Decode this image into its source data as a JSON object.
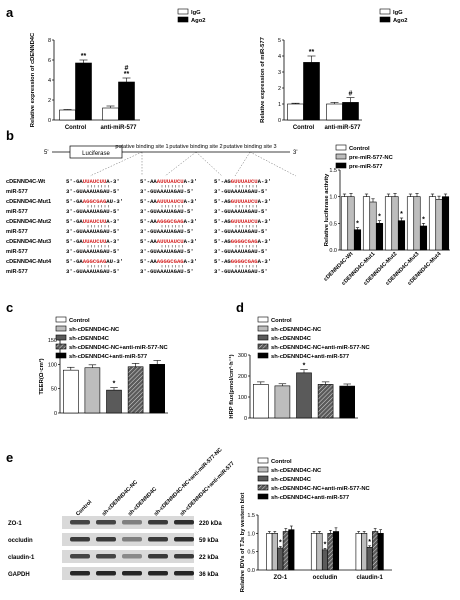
{
  "panels": {
    "a": "a",
    "b": "b",
    "c": "c",
    "d": "d",
    "e": "e"
  },
  "colors": {
    "white": "#ffffff",
    "light_gray": "#bdbdbd",
    "dark_gray": "#5a5a5a",
    "black": "#000000",
    "red": "#d42020"
  },
  "chart_data": [
    {
      "panel": "a-left",
      "type": "bar",
      "ylabel": "Relative expression of cDENND4C",
      "legend": [
        "IgG",
        "Ago2"
      ],
      "legend_position": "top-right",
      "categories": [
        "Control",
        "anti-miR-577"
      ],
      "series": [
        {
          "name": "IgG",
          "values": [
            1.0,
            1.2
          ],
          "errors": [
            0.05,
            0.2
          ]
        },
        {
          "name": "Ago2",
          "values": [
            5.7,
            3.8
          ],
          "errors": [
            0.3,
            0.4
          ]
        }
      ],
      "ylim": [
        0,
        8
      ],
      "yticks": [
        "0",
        "2",
        "4",
        "6",
        "8"
      ],
      "annotations": [
        {
          "category": 1,
          "series": 1,
          "text": "**"
        },
        {
          "category": 0,
          "series": 1,
          "text": "**"
        },
        {
          "category": 1,
          "series": 1,
          "text": "#"
        }
      ]
    },
    {
      "panel": "a-right",
      "type": "bar",
      "ylabel": "Relative expression of miR-577",
      "legend": [
        "IgG",
        "Ago2"
      ],
      "legend_position": "top-right",
      "categories": [
        "Control",
        "anti-miR-577"
      ],
      "series": [
        {
          "name": "IgG",
          "values": [
            1.0,
            1.0
          ],
          "errors": [
            0.05,
            0.1
          ]
        },
        {
          "name": "Ago2",
          "values": [
            3.6,
            1.1
          ],
          "errors": [
            0.4,
            0.3
          ]
        }
      ],
      "ylim": [
        0,
        5
      ],
      "yticks": [
        "0",
        "1",
        "2",
        "3",
        "4",
        "5"
      ],
      "annotations": [
        {
          "category": 0,
          "series": 1,
          "text": "**"
        },
        {
          "category": 1,
          "series": 1,
          "text": "#"
        }
      ]
    },
    {
      "panel": "b",
      "type": "bar",
      "ylabel": "Relative luciferase activity",
      "legend": [
        "Control",
        "pre-miR-577-NC",
        "pre-miR-577"
      ],
      "legend_position": "top",
      "categories": [
        "cDENND4C-Wt",
        "cDENND4C-Mut1",
        "cDENND4C-Mut2",
        "cDENND4C-Mut3",
        "cDENND4C-Mut4"
      ],
      "series": [
        {
          "name": "Control",
          "values": [
            1.0,
            1.0,
            1.0,
            1.0,
            1.0
          ],
          "errors": [
            0.05,
            0.05,
            0.05,
            0.05,
            0.05
          ]
        },
        {
          "name": "pre-miR-577-NC",
          "values": [
            1.0,
            0.9,
            1.0,
            1.0,
            0.95
          ],
          "errors": [
            0.06,
            0.06,
            0.06,
            0.06,
            0.06
          ]
        },
        {
          "name": "pre-miR-577",
          "values": [
            0.38,
            0.5,
            0.55,
            0.45,
            1.0
          ],
          "errors": [
            0.04,
            0.05,
            0.05,
            0.05,
            0.05
          ]
        }
      ],
      "ylim": [
        0,
        1.5
      ],
      "yticks": [
        "0.0",
        "0.5",
        "1.0",
        "1.5"
      ],
      "annotations": [
        {
          "category": 0,
          "series": 2,
          "text": "*"
        },
        {
          "category": 1,
          "series": 2,
          "text": "*"
        },
        {
          "category": 2,
          "series": 2,
          "text": "*"
        },
        {
          "category": 3,
          "series": 2,
          "text": "*"
        }
      ]
    },
    {
      "panel": "c",
      "type": "bar",
      "ylabel": "TEER(Ω·cm²)",
      "legend": [
        "Control",
        "sh-cDENND4C-NC",
        "sh-cDENND4C",
        "sh-cDENND4C-NC+anti-miR-577-NC",
        "sh-cDENND4C+anti-miR-577"
      ],
      "legend_position": "top",
      "categories": [
        "Control",
        "sh-cDENND4C-NC",
        "sh-cDENND4C",
        "sh-cDENND4C-NC+anti-miR-577-NC",
        "sh-cDENND4C+anti-miR-577"
      ],
      "values": [
        88,
        93,
        47,
        95,
        100
      ],
      "errors": [
        6,
        6,
        5,
        7,
        8
      ],
      "ylim": [
        0,
        150
      ],
      "yticks": [
        "0",
        "50",
        "100",
        "150"
      ],
      "annotations": [
        {
          "category": 2,
          "text": "*"
        }
      ]
    },
    {
      "panel": "d",
      "type": "bar",
      "ylabel": "HRP flux(pmol/cm²·h⁻¹)",
      "legend": [
        "Control",
        "sh-cDENND4C-NC",
        "sh-cDENND4C",
        "sh-cDENND4C-NC+anti-miR-577-NC",
        "sh-cDENND4C+anti-miR-577"
      ],
      "legend_position": "top",
      "categories": [
        "Control",
        "sh-cDENND4C-NC",
        "sh-cDENND4C",
        "sh-cDENND4C-NC+anti-miR-577-NC",
        "sh-cDENND4C+anti-miR-577"
      ],
      "values": [
        160,
        153,
        215,
        160,
        152
      ],
      "errors": [
        12,
        10,
        15,
        12,
        10
      ],
      "ylim": [
        0,
        300
      ],
      "yticks": [
        "0",
        "100",
        "200",
        "300"
      ],
      "annotations": [
        {
          "category": 2,
          "text": "*"
        }
      ]
    },
    {
      "panel": "e",
      "type": "bar",
      "ylabel": "Relative IDVs of TJs by western blot",
      "legend": [
        "Control",
        "sh-cDENND4C-NC",
        "sh-cDENND4C",
        "sh-cDENND4C-NC+anti-miR-577-NC",
        "sh-cDENND4C+anti-miR-577"
      ],
      "legend_position": "top",
      "categories": [
        "ZO-1",
        "occludin",
        "claudin-1"
      ],
      "series": [
        {
          "name": "Control",
          "values": [
            1.0,
            1.0,
            1.0
          ],
          "errors": [
            0.05,
            0.05,
            0.05
          ]
        },
        {
          "name": "sh-cDENND4C-NC",
          "values": [
            1.0,
            1.0,
            1.0
          ],
          "errors": [
            0.05,
            0.05,
            0.05
          ]
        },
        {
          "name": "sh-cDENND4C",
          "values": [
            0.6,
            0.55,
            0.62
          ],
          "errors": [
            0.04,
            0.04,
            0.04
          ]
        },
        {
          "name": "sh-cDENND4C-NC+anti-miR-577-NC",
          "values": [
            1.05,
            1.0,
            1.05
          ],
          "errors": [
            0.08,
            0.08,
            0.08
          ]
        },
        {
          "name": "sh-cDENND4C+anti-miR-577",
          "values": [
            1.1,
            1.05,
            1.0
          ],
          "errors": [
            0.1,
            0.1,
            0.1
          ]
        }
      ],
      "ylim": [
        0,
        1.5
      ],
      "yticks": [
        "0.0",
        "0.5",
        "1.0",
        "1.5"
      ],
      "annotations": [
        {
          "category": 0,
          "series": 2,
          "text": "*"
        },
        {
          "category": 1,
          "series": 2,
          "text": "*"
        },
        {
          "category": 2,
          "series": 2,
          "text": "*"
        }
      ]
    }
  ],
  "luciferase": {
    "box_label": "Luciferase",
    "five_prime": "5'",
    "three_prime": "3'",
    "site_labels": [
      "putative binding site 1",
      "putative binding site 2",
      "putative binding site 3"
    ]
  },
  "sequences": [
    {
      "label": "cDENND4C-Wt",
      "s1": [
        [
          "5'-GA",
          0
        ],
        [
          "UUAUCUU",
          1
        ],
        [
          "A-3'",
          0
        ]
      ],
      "s2": [
        [
          "5'-AA",
          0
        ],
        [
          "AUUUAUCU",
          1
        ],
        [
          "A-3'",
          0
        ]
      ],
      "s3": [
        [
          "5'-AG",
          0
        ],
        [
          "GUUUAUCU",
          1
        ],
        [
          "A-3'",
          0
        ]
      ]
    },
    {
      "label": "miR-577",
      "s1": [
        [
          "3'-GU",
          0
        ],
        [
          "AAAUAGAU-5'",
          0
        ]
      ],
      "s2": [
        [
          "3'-GU",
          0
        ],
        [
          "AAAUAGAU-5'",
          0
        ]
      ],
      "s3": [
        [
          "3'-GU",
          0
        ],
        [
          "AAAUAGAU-5'",
          0
        ]
      ]
    },
    {
      "label": "cDENND4C-Mut1",
      "s1": [
        [
          "5'-GA",
          0
        ],
        [
          "AGGCGAG",
          1
        ],
        [
          "AU-3'",
          0
        ]
      ],
      "s2": [
        [
          "5'-AA",
          0
        ],
        [
          "AUUUAUCU",
          1
        ],
        [
          "A-3'",
          0
        ]
      ],
      "s3": [
        [
          "5'-AG",
          0
        ],
        [
          "GUUUAUCU",
          1
        ],
        [
          "A-3'",
          0
        ]
      ]
    },
    {
      "label": "miR-577",
      "s1": [
        [
          "3'-GU",
          0
        ],
        [
          "AAAUAGAU-5'",
          0
        ]
      ],
      "s2": [
        [
          "3'-GU",
          0
        ],
        [
          "AAAUAGAU-5'",
          0
        ]
      ],
      "s3": [
        [
          "3'-GU",
          0
        ],
        [
          "AAAUAGAU-5'",
          0
        ]
      ]
    },
    {
      "label": "cDENND4C-Mut2",
      "s1": [
        [
          "5'-GA",
          0
        ],
        [
          "UUAUCUU",
          1
        ],
        [
          "A-3'",
          0
        ]
      ],
      "s2": [
        [
          "5'-AA",
          0
        ],
        [
          "AGGGCGAG",
          1
        ],
        [
          "A-3'",
          0
        ]
      ],
      "s3": [
        [
          "5'-AG",
          0
        ],
        [
          "GUUUAUCU",
          1
        ],
        [
          "A-3'",
          0
        ]
      ]
    },
    {
      "label": "miR-577",
      "s1": [
        [
          "3'-GU",
          0
        ],
        [
          "AAAUAGAU-5'",
          0
        ]
      ],
      "s2": [
        [
          "3'-GU",
          0
        ],
        [
          "AAAUAGAU-5'",
          0
        ]
      ],
      "s3": [
        [
          "3'-GU",
          0
        ],
        [
          "AAAUAGAU-5'",
          0
        ]
      ]
    },
    {
      "label": "cDENND4C-Mut3",
      "s1": [
        [
          "5'-GA",
          0
        ],
        [
          "UUAUCUU",
          1
        ],
        [
          "A-3'",
          0
        ]
      ],
      "s2": [
        [
          "5'-AA",
          0
        ],
        [
          "AUUUAUCU",
          1
        ],
        [
          "A-3'",
          0
        ]
      ],
      "s3": [
        [
          "5'-AG",
          0
        ],
        [
          "GGGGCGAG",
          1
        ],
        [
          "A-3'",
          0
        ]
      ]
    },
    {
      "label": "miR-577",
      "s1": [
        [
          "3'-GU",
          0
        ],
        [
          "AAAUAGAU-5'",
          0
        ]
      ],
      "s2": [
        [
          "3'-GU",
          0
        ],
        [
          "AAAUAGAU-5'",
          0
        ]
      ],
      "s3": [
        [
          "3'-GU",
          0
        ],
        [
          "AAAUAGAU-5'",
          0
        ]
      ]
    },
    {
      "label": "cDENND4C-Mut4",
      "s1": [
        [
          "5'-GA",
          0
        ],
        [
          "AGGCGAG",
          1
        ],
        [
          "AU-3'",
          0
        ]
      ],
      "s2": [
        [
          "5'-AA",
          0
        ],
        [
          "AGGGCGAG",
          1
        ],
        [
          "A-3'",
          0
        ]
      ],
      "s3": [
        [
          "5'-AG",
          0
        ],
        [
          "GGGGCGAG",
          1
        ],
        [
          "A-3'",
          0
        ]
      ]
    },
    {
      "label": "miR-577",
      "s1": [
        [
          "3'-GU",
          0
        ],
        [
          "AAAUAGAU-5'",
          0
        ]
      ],
      "s2": [
        [
          "3'-GU",
          0
        ],
        [
          "AAAUAGAU-5'",
          0
        ]
      ],
      "s3": [
        [
          "3'-GU",
          0
        ],
        [
          "AAAUAGAU-5'",
          0
        ]
      ]
    }
  ],
  "blot": {
    "lanes": [
      "Control",
      "sh-cDENND4C-NC",
      "sh-cDENND4C",
      "sh-cDENND4C-NC+anti-miR-577-NC",
      "sh-cDENND4C+anti-miR-577"
    ],
    "rows": [
      {
        "protein": "ZO-1",
        "size": "220 kDa"
      },
      {
        "protein": "occludin",
        "size": "59 kDa"
      },
      {
        "protein": "claudin-1",
        "size": "22 kDa"
      },
      {
        "protein": "GAPDH",
        "size": "36 kDa"
      }
    ]
  }
}
